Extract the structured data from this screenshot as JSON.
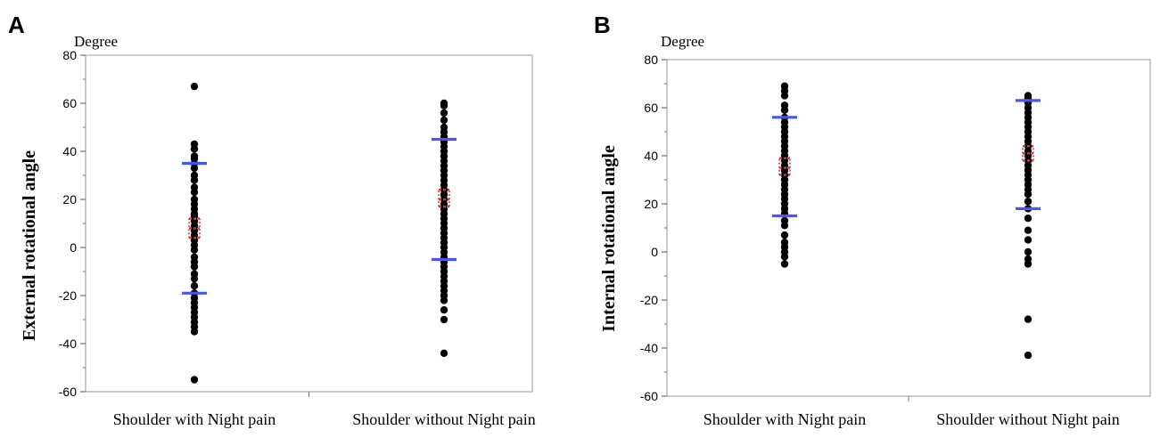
{
  "chart_data": [
    {
      "type": "scatter",
      "panel": "A",
      "unit_label": "Degree",
      "ylabel": "External rotational angle",
      "xlabel": "",
      "ylim": [
        -60,
        80
      ],
      "yticks": [
        -60,
        -40,
        -20,
        0,
        20,
        40,
        60,
        80
      ],
      "categories": [
        "Shoulder with Night pain",
        "Shoulder without Night pain"
      ],
      "groups": [
        {
          "values": [
            67,
            43,
            41,
            38,
            37,
            35,
            33,
            30,
            28,
            25,
            23,
            20,
            18,
            16,
            14,
            13,
            11,
            9,
            7,
            5,
            3,
            1,
            -1,
            -4,
            -6,
            -8,
            -11,
            -13,
            -16,
            -19,
            -21,
            -23,
            -25,
            -27,
            -29,
            -31,
            -33,
            -35,
            -55
          ],
          "mean": 8,
          "ci": [
            4,
            12
          ],
          "sd_bounds": [
            -19,
            35
          ]
        },
        {
          "values": [
            60,
            59,
            56,
            53,
            50,
            48,
            46,
            44,
            42,
            40,
            38,
            36,
            34,
            32,
            30,
            28,
            26,
            24,
            22,
            20,
            18,
            16,
            14,
            12,
            10,
            8,
            6,
            4,
            2,
            0,
            -2,
            -4,
            -6,
            -8,
            -10,
            -12,
            -14,
            -16,
            -18,
            -20,
            -22,
            -26,
            -30,
            -44
          ],
          "mean": 20,
          "ci": [
            17,
            24
          ],
          "sd_bounds": [
            -5,
            45
          ]
        }
      ],
      "colors": {
        "points": "#000000",
        "sd": "#4a55ee",
        "mean": "#d0383f",
        "frame": "#9a9a9a"
      }
    },
    {
      "type": "scatter",
      "panel": "B",
      "unit_label": "Degree",
      "ylabel": "Internal rotational angle",
      "xlabel": "",
      "ylim": [
        -60,
        80
      ],
      "yticks": [
        -60,
        -40,
        -20,
        0,
        20,
        40,
        60,
        80
      ],
      "categories": [
        "Shoulder with Night pain",
        "Shoulder without Night pain"
      ],
      "groups": [
        {
          "values": [
            69,
            67,
            65,
            61,
            59,
            56,
            54,
            52,
            50,
            48,
            46,
            44,
            42,
            40,
            38,
            36,
            34,
            32,
            30,
            28,
            26,
            24,
            22,
            20,
            18,
            16,
            13,
            11,
            7,
            4,
            2,
            0,
            -2,
            -5
          ],
          "mean": 35,
          "ci": [
            32,
            39
          ],
          "sd_bounds": [
            15,
            56
          ]
        },
        {
          "values": [
            65,
            64,
            63,
            62,
            60,
            58,
            56,
            54,
            52,
            50,
            48,
            46,
            44,
            42,
            40,
            38,
            36,
            34,
            32,
            30,
            28,
            26,
            24,
            21,
            18,
            14,
            9,
            5,
            0,
            -3,
            -5,
            -28,
            -43
          ],
          "mean": 41,
          "ci": [
            38,
            44
          ],
          "sd_bounds": [
            18,
            63
          ]
        }
      ],
      "colors": {
        "points": "#000000",
        "sd": "#4a55ee",
        "mean": "#d0383f",
        "frame": "#9a9a9a"
      }
    }
  ]
}
